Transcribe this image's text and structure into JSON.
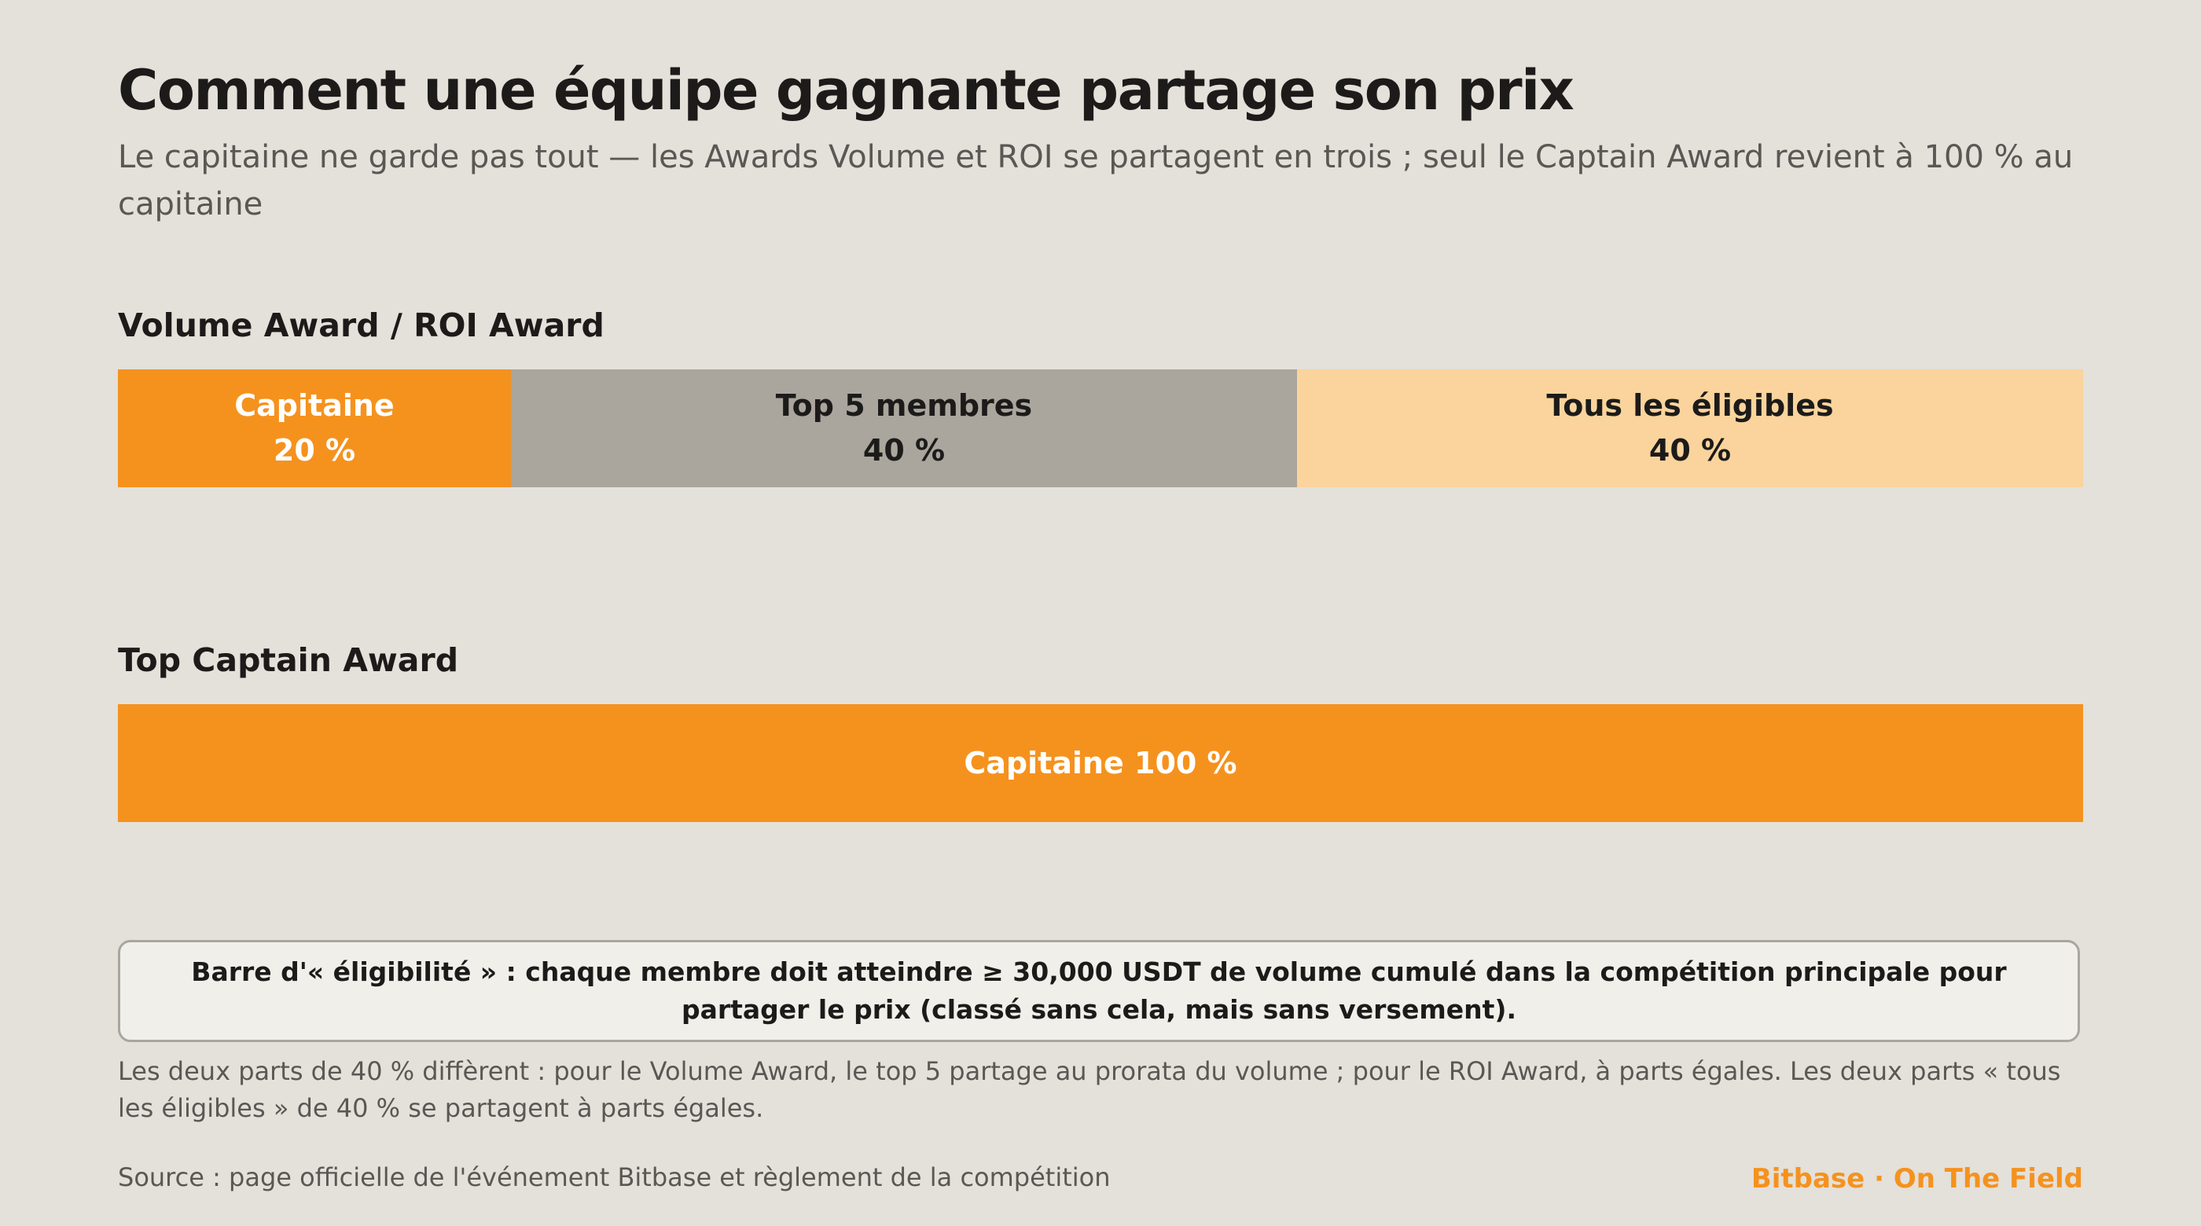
{
  "title": "Comment une équipe gagnante partage son prix",
  "subtitle": "Le capitaine ne garde pas tout — les Awards Volume et ROI se partagent en trois ; seul le Captain Award revient à 100 % au capitaine",
  "chart_data": [
    {
      "type": "bar",
      "orientation": "horizontal-stacked",
      "title": "Volume Award / ROI Award",
      "segments": [
        {
          "label": "Capitaine",
          "value": 20,
          "value_label": "20 %",
          "color": "#f5921e",
          "text_color": "#ffffff"
        },
        {
          "label": "Top 5 membres",
          "value": 40,
          "value_label": "40 %",
          "color": "#aaa59d",
          "text_color": "#1c1b1a"
        },
        {
          "label": "Tous les éligibles",
          "value": 40,
          "value_label": "40 %",
          "color": "#fad49c",
          "text_color": "#1c1b1a"
        }
      ]
    },
    {
      "type": "bar",
      "orientation": "horizontal-stacked",
      "title": "Top Captain Award",
      "segments": [
        {
          "label": "Capitaine 100 %",
          "value": 100,
          "color": "#f5921e",
          "text_color": "#ffffff"
        }
      ]
    }
  ],
  "callout": "Barre d'« éligibilité » : chaque membre doit atteindre ≥ 30,000 USDT de volume cumulé dans la compétition principale pour partager le prix (classé sans cela, mais sans versement).",
  "note": "Les deux parts de 40 % diffèrent : pour le Volume Award, le top 5 partage au prorata du volume ; pour le ROI Award, à parts égales. Les deux parts « tous les éligibles » de 40 % se partagent à parts égales.",
  "source": "Source : page officielle de l'événement Bitbase et règlement de la compétition",
  "brand": "Bitbase · On The Field",
  "colors": {
    "accent": "#f5921e",
    "background": "#e4e0da"
  }
}
